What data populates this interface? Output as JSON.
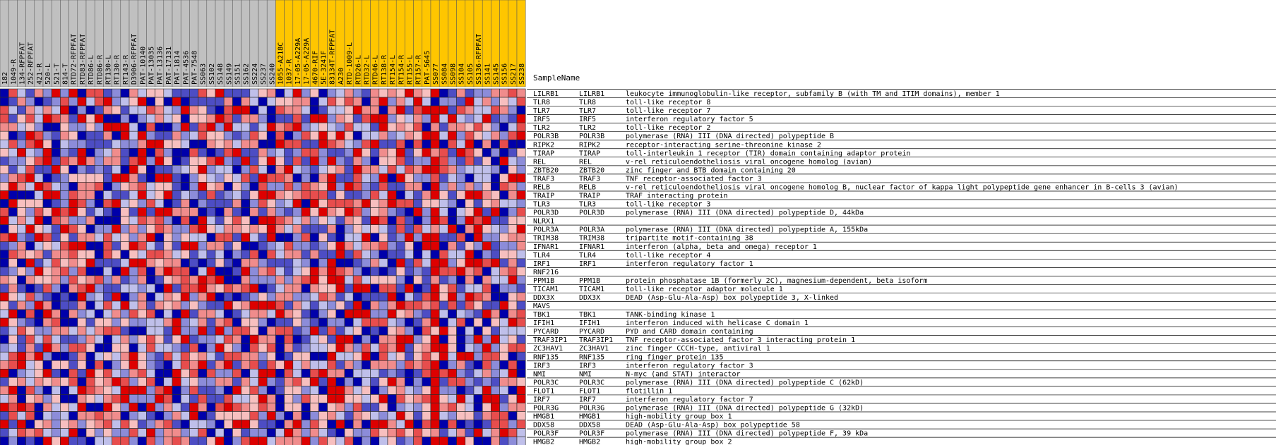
{
  "header_label": "SampleName",
  "chart_data": {
    "type": "heatmap",
    "title": "",
    "value_range": [
      -1,
      1
    ],
    "columns": [
      {
        "name": "182",
        "group": "gray"
      },
      {
        "name": "1049-R",
        "group": "gray"
      },
      {
        "name": "134-RFPFAT",
        "group": "gray"
      },
      {
        "name": "252-RFPFAT",
        "group": "gray"
      },
      {
        "name": "421-R",
        "group": "gray"
      },
      {
        "name": "520-L",
        "group": "gray"
      },
      {
        "name": "521-T",
        "group": "gray"
      },
      {
        "name": "814-T",
        "group": "gray"
      },
      {
        "name": "RTD72-RFPFAT",
        "group": "gray"
      },
      {
        "name": "RTD83-RFPFAT",
        "group": "gray"
      },
      {
        "name": "RTD86-L",
        "group": "gray"
      },
      {
        "name": "RTD86-R",
        "group": "gray"
      },
      {
        "name": "RT130-L",
        "group": "gray"
      },
      {
        "name": "RT130-R",
        "group": "gray"
      },
      {
        "name": "RT143-R",
        "group": "gray"
      },
      {
        "name": "D3906-RFPFAT",
        "group": "gray"
      },
      {
        "name": "PAT-10140",
        "group": "gray"
      },
      {
        "name": "PAT-13035",
        "group": "gray"
      },
      {
        "name": "PAT-13136",
        "group": "gray"
      },
      {
        "name": "PAT-17131",
        "group": "gray"
      },
      {
        "name": "PAT-1814",
        "group": "gray"
      },
      {
        "name": "PAT-4536",
        "group": "gray"
      },
      {
        "name": "PAT-7548",
        "group": "gray"
      },
      {
        "name": "SS063",
        "group": "gray"
      },
      {
        "name": "SS102",
        "group": "gray"
      },
      {
        "name": "SS148",
        "group": "gray"
      },
      {
        "name": "SS149",
        "group": "gray"
      },
      {
        "name": "SS151",
        "group": "gray"
      },
      {
        "name": "SS162",
        "group": "gray"
      },
      {
        "name": "SS224",
        "group": "gray"
      },
      {
        "name": "SS237",
        "group": "gray"
      },
      {
        "name": "SS240",
        "group": "gray"
      },
      {
        "name": "1055-A218C",
        "group": "gold"
      },
      {
        "name": "1037-R",
        "group": "gold"
      },
      {
        "name": "17-05-A229A",
        "group": "gold"
      },
      {
        "name": "17-05-A229A",
        "group": "gold"
      },
      {
        "name": "4670-RIF",
        "group": "gold"
      },
      {
        "name": "5E-3241F",
        "group": "gold"
      },
      {
        "name": "83134T-RFPFAT",
        "group": "gold"
      },
      {
        "name": "A230",
        "group": "gold"
      },
      {
        "name": "RTD-1009-L",
        "group": "gold"
      },
      {
        "name": "RTD26-L",
        "group": "gold"
      },
      {
        "name": "RTD32-L",
        "group": "gold"
      },
      {
        "name": "RTD46-L",
        "group": "gold"
      },
      {
        "name": "RT138-R",
        "group": "gold"
      },
      {
        "name": "RT154-L",
        "group": "gold"
      },
      {
        "name": "RT154-R",
        "group": "gold"
      },
      {
        "name": "RT155-L",
        "group": "gold"
      },
      {
        "name": "RT157-R",
        "group": "gold"
      },
      {
        "name": "PAT-5645",
        "group": "gold"
      },
      {
        "name": "SS077",
        "group": "gold"
      },
      {
        "name": "SS084",
        "group": "gold"
      },
      {
        "name": "SS098",
        "group": "gold"
      },
      {
        "name": "SS104",
        "group": "gold"
      },
      {
        "name": "SS105",
        "group": "gold"
      },
      {
        "name": "SS136-RFPFAT",
        "group": "gold"
      },
      {
        "name": "SS141",
        "group": "gold"
      },
      {
        "name": "SS145",
        "group": "gold"
      },
      {
        "name": "SS156",
        "group": "gold"
      },
      {
        "name": "SS217",
        "group": "gold"
      },
      {
        "name": "SS238",
        "group": "gold"
      }
    ],
    "rows": [
      {
        "id": "LILRB1",
        "symbol": "LILRB1",
        "desc": "leukocyte immunoglobulin-like receptor, subfamily B (with TM and ITIM domains), member 1"
      },
      {
        "id": "TLR8",
        "symbol": "TLR8",
        "desc": "toll-like receptor 8"
      },
      {
        "id": "TLR7",
        "symbol": "TLR7",
        "desc": "toll-like receptor 7"
      },
      {
        "id": "IRF5",
        "symbol": "IRF5",
        "desc": "interferon regulatory factor 5"
      },
      {
        "id": "TLR2",
        "symbol": "TLR2",
        "desc": "toll-like receptor 2"
      },
      {
        "id": "POLR3B",
        "symbol": "POLR3B",
        "desc": "polymerase (RNA) III (DNA directed) polypeptide B"
      },
      {
        "id": "RIPK2",
        "symbol": "RIPK2",
        "desc": "receptor-interacting serine-threonine kinase 2"
      },
      {
        "id": "TIRAP",
        "symbol": "TIRAP",
        "desc": "toll-interleukin 1 receptor (TIR) domain containing adaptor protein"
      },
      {
        "id": "REL",
        "symbol": "REL",
        "desc": "v-rel reticuloendotheliosis viral oncogene homolog (avian)"
      },
      {
        "id": "ZBTB20",
        "symbol": "ZBTB20",
        "desc": "zinc finger and BTB domain containing 20"
      },
      {
        "id": "TRAF3",
        "symbol": "TRAF3",
        "desc": "TNF receptor-associated factor 3"
      },
      {
        "id": "RELB",
        "symbol": "RELB",
        "desc": "v-rel reticuloendotheliosis viral oncogene homolog B, nuclear factor of kappa light polypeptide gene enhancer in B-cells 3 (avian)"
      },
      {
        "id": "TRAIP",
        "symbol": "TRAIP",
        "desc": "TRAF interacting protein"
      },
      {
        "id": "TLR3",
        "symbol": "TLR3",
        "desc": "toll-like receptor 3"
      },
      {
        "id": "POLR3D",
        "symbol": "POLR3D",
        "desc": "polymerase (RNA) III (DNA directed) polypeptide D, 44kDa"
      },
      {
        "id": "NLRX1",
        "symbol": "",
        "desc": ""
      },
      {
        "id": "POLR3A",
        "symbol": "POLR3A",
        "desc": "polymerase (RNA) III (DNA directed) polypeptide A, 155kDa"
      },
      {
        "id": "TRIM38",
        "symbol": "TRIM38",
        "desc": "tripartite motif-containing 38"
      },
      {
        "id": "IFNAR1",
        "symbol": "IFNAR1",
        "desc": "interferon (alpha, beta and omega) receptor 1"
      },
      {
        "id": "TLR4",
        "symbol": "TLR4",
        "desc": "toll-like receptor 4"
      },
      {
        "id": "IRF1",
        "symbol": "IRF1",
        "desc": "interferon regulatory factor 1"
      },
      {
        "id": "RNF216",
        "symbol": "",
        "desc": ""
      },
      {
        "id": "PPM1B",
        "symbol": "PPM1B",
        "desc": "protein phosphatase 1B (formerly 2C), magnesium-dependent, beta isoform"
      },
      {
        "id": "TICAM1",
        "symbol": "TICAM1",
        "desc": "toll-like receptor adaptor molecule 1"
      },
      {
        "id": "DDX3X",
        "symbol": "DDX3X",
        "desc": "DEAD (Asp-Glu-Ala-Asp) box polypeptide 3, X-linked"
      },
      {
        "id": "MAVS",
        "symbol": "",
        "desc": ""
      },
      {
        "id": "TBK1",
        "symbol": "TBK1",
        "desc": "TANK-binding kinase 1"
      },
      {
        "id": "IFIH1",
        "symbol": "IFIH1",
        "desc": "interferon induced with helicase C domain 1"
      },
      {
        "id": "PYCARD",
        "symbol": "PYCARD",
        "desc": "PYD and CARD domain containing"
      },
      {
        "id": "TRAF3IP1",
        "symbol": "TRAF3IP1",
        "desc": "TNF receptor-associated factor 3 interacting protein 1"
      },
      {
        "id": "ZC3HAV1",
        "symbol": "ZC3HAV1",
        "desc": "zinc finger CCCH-type, antiviral 1"
      },
      {
        "id": "RNF135",
        "symbol": "RNF135",
        "desc": "ring finger protein 135"
      },
      {
        "id": "IRF3",
        "symbol": "IRF3",
        "desc": "interferon regulatory factor 3"
      },
      {
        "id": "NMI",
        "symbol": "NMI",
        "desc": "N-myc (and STAT) interactor"
      },
      {
        "id": "POLR3C",
        "symbol": "POLR3C",
        "desc": "polymerase (RNA) III (DNA directed) polypeptide C (62kD)"
      },
      {
        "id": "FLOT1",
        "symbol": "FLOT1",
        "desc": "flotillin 1"
      },
      {
        "id": "IRF7",
        "symbol": "IRF7",
        "desc": "interferon regulatory factor 7"
      },
      {
        "id": "POLR3G",
        "symbol": "POLR3G",
        "desc": "polymerase (RNA) III (DNA directed) polypeptide G (32kD)"
      },
      {
        "id": "HMGB1",
        "symbol": "HMGB1",
        "desc": "high-mobility group box 1"
      },
      {
        "id": "DDX58",
        "symbol": "DDX58",
        "desc": "DEAD (Asp-Glu-Ala-Asp) box polypeptide 58"
      },
      {
        "id": "POLR3F",
        "symbol": "POLR3F",
        "desc": "polymerase (RNA) III (DNA directed) polypeptide F, 39 kDa"
      },
      {
        "id": "HMGB2",
        "symbol": "HMGB2",
        "desc": "high-mobility group box 2"
      }
    ],
    "colors": {
      "gray_group": "#c0c0c0",
      "gold_group": "#ffc600",
      "high": "#dd0000",
      "low": "#0000aa",
      "grid": "#2a2a2a"
    }
  }
}
